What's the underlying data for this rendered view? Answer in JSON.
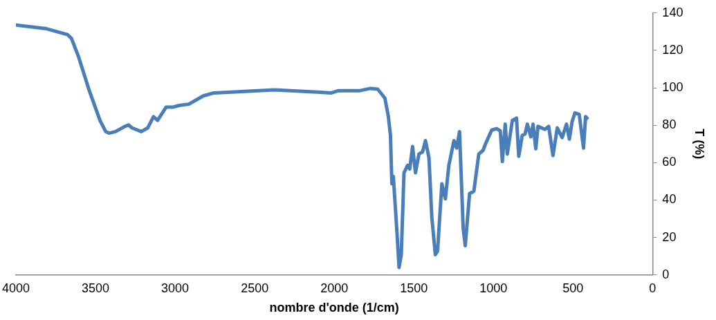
{
  "chart_data": {
    "type": "line",
    "xlabel": "nombre d'onde (1/cm)",
    "ylabel": "T (%)",
    "xlim": [
      4000,
      0
    ],
    "xticks": [
      4000,
      3500,
      3000,
      2500,
      2000,
      1500,
      1000,
      500,
      0
    ],
    "ylim": [
      0,
      140
    ],
    "yticks": [
      0,
      20,
      40,
      60,
      80,
      100,
      120,
      140
    ],
    "grid": false,
    "legend": false,
    "marker": "none",
    "line_style": "solid",
    "series": [
      {
        "color": "#4a7ebb",
        "x": [
          4000,
          3808,
          3675,
          3651,
          3606,
          3539,
          3472,
          3436,
          3414,
          3374,
          3315,
          3293,
          3271,
          3212,
          3172,
          3136,
          3110,
          3056,
          3011,
          2980,
          2913,
          2823,
          2756,
          2644,
          2376,
          2107,
          2018,
          1973,
          1839,
          1772,
          1727,
          1682,
          1660,
          1647,
          1638,
          1629,
          1606,
          1593,
          1579,
          1562,
          1539,
          1526,
          1508,
          1490,
          1468,
          1445,
          1427,
          1405,
          1387,
          1365,
          1351,
          1324,
          1302,
          1280,
          1248,
          1231,
          1213,
          1190,
          1177,
          1150,
          1123,
          1092,
          1065,
          1047,
          1011,
          980,
          957,
          944,
          926,
          913,
          881,
          855,
          841,
          819,
          801,
          787,
          765,
          751,
          734,
          720,
          676,
          653,
          626,
          599,
          568,
          541,
          523,
          506,
          488,
          461,
          434,
          421,
          412
        ],
        "values": [
          133.6,
          131.6,
          128.4,
          126.4,
          116.5,
          98.5,
          82.6,
          76.6,
          75.8,
          76.6,
          79.4,
          80.2,
          78.6,
          76.6,
          78.6,
          84.6,
          82.6,
          89.7,
          89.7,
          90.5,
          91.3,
          95.7,
          97.3,
          97.7,
          98.9,
          97.7,
          97.3,
          98.5,
          98.5,
          99.7,
          99.3,
          94.5,
          84.6,
          74.6,
          48.7,
          52.7,
          22.7,
          4.0,
          10.8,
          54.6,
          58.6,
          56.6,
          68.6,
          54.6,
          64.6,
          65.8,
          71.8,
          62.6,
          30.7,
          10.8,
          12.8,
          48.7,
          40.7,
          58.6,
          71.8,
          67.8,
          76.6,
          24.7,
          15.6,
          43.5,
          44.7,
          64.6,
          66.6,
          70.6,
          77.4,
          78.2,
          77.0,
          60.6,
          80.6,
          64.6,
          82.6,
          83.8,
          63.4,
          74.6,
          75.4,
          80.6,
          73.8,
          80.6,
          67.4,
          79.4,
          77.8,
          79.4,
          63.8,
          78.6,
          73.4,
          80.6,
          72.6,
          81.8,
          86.6,
          85.8,
          67.8,
          84.6,
          83.8
        ]
      }
    ]
  }
}
